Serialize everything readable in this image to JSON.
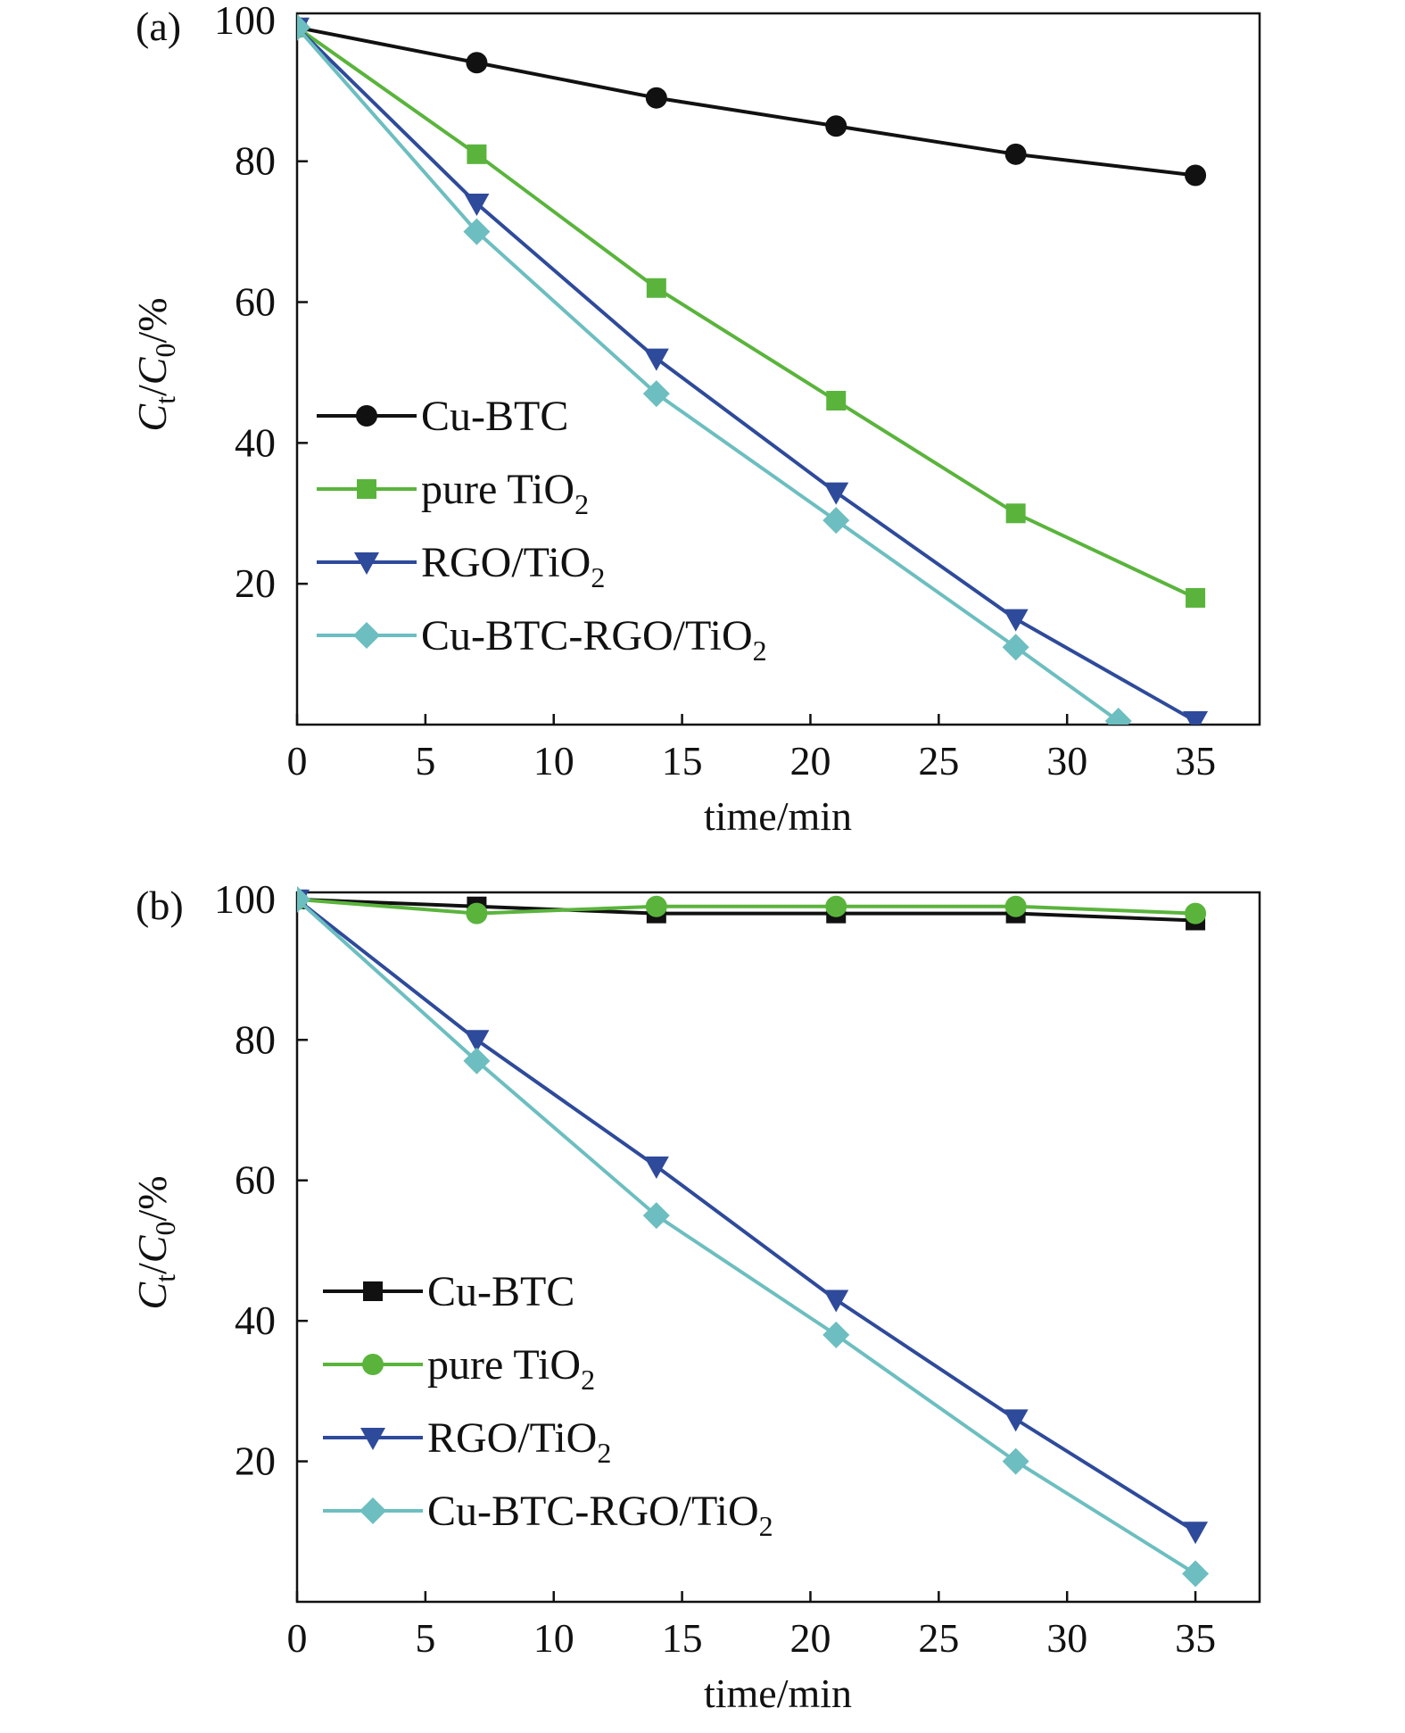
{
  "colors": {
    "Cu-BTC": "#111111",
    "pure TiO2": "#5ab43c",
    "RGO/TiO2": "#2e4a9a",
    "Cu-BTC-RGO/TiO2": "#6dbec0"
  },
  "chart_data": [
    {
      "type": "line",
      "panel_label": "(a)",
      "xlabel": "time/min",
      "ylabel": "Ct/C0/%",
      "xlim": [
        0,
        37.5
      ],
      "ylim": [
        0,
        101
      ],
      "xticks": [
        0,
        5,
        10,
        15,
        20,
        25,
        30,
        35
      ],
      "yticks": [
        20,
        40,
        60,
        80,
        100
      ],
      "grid": false,
      "legend_placement": "center-left",
      "series": [
        {
          "name": "Cu-BTC",
          "marker": "circle",
          "x": [
            0,
            7,
            14,
            21,
            28,
            35
          ],
          "y": [
            99,
            94,
            89,
            85,
            81,
            78
          ]
        },
        {
          "name": "pure TiO2",
          "marker": "square",
          "x": [
            0,
            7,
            14,
            21,
            28,
            35
          ],
          "y": [
            99,
            81,
            62,
            46,
            30,
            18
          ]
        },
        {
          "name": "RGO/TiO2",
          "marker": "triangle-down",
          "x": [
            0,
            7,
            14,
            21,
            28,
            35
          ],
          "y": [
            99,
            74,
            52,
            33,
            15,
            0.5
          ]
        },
        {
          "name": "Cu-BTC-RGO/TiO2",
          "marker": "diamond",
          "x": [
            0,
            7,
            14,
            21,
            28,
            32
          ],
          "y": [
            99,
            70,
            47,
            29,
            11,
            0.5
          ]
        }
      ]
    },
    {
      "type": "line",
      "panel_label": "(b)",
      "xlabel": "time/min",
      "ylabel": "Ct/C0/%",
      "xlim": [
        0,
        37.5
      ],
      "ylim": [
        0,
        101
      ],
      "xticks": [
        0,
        5,
        10,
        15,
        20,
        25,
        30,
        35
      ],
      "yticks": [
        20,
        40,
        60,
        80,
        100
      ],
      "grid": false,
      "legend_placement": "center-left",
      "series": [
        {
          "name": "Cu-BTC",
          "marker": "square",
          "x": [
            0,
            7,
            14,
            21,
            28,
            35
          ],
          "y": [
            100,
            99,
            98,
            98,
            98,
            97
          ]
        },
        {
          "name": "pure TiO2",
          "marker": "circle",
          "x": [
            0,
            7,
            14,
            21,
            28,
            35
          ],
          "y": [
            100,
            98,
            99,
            99,
            99,
            98
          ]
        },
        {
          "name": "RGO/TiO2",
          "marker": "triangle-down",
          "x": [
            0,
            7,
            14,
            21,
            28,
            35
          ],
          "y": [
            100,
            80,
            62,
            43,
            26,
            10
          ]
        },
        {
          "name": "Cu-BTC-RGO/TiO2",
          "marker": "diamond",
          "x": [
            0,
            7,
            14,
            21,
            28,
            35
          ],
          "y": [
            100,
            77,
            55,
            38,
            20,
            4
          ]
        }
      ]
    }
  ],
  "legend_text": [
    {
      "main": "Cu-BTC",
      "sub": ""
    },
    {
      "main": "pure TiO",
      "sub": "2"
    },
    {
      "main": "RGO/TiO",
      "sub": "2"
    },
    {
      "main": "Cu-BTC-RGO/TiO",
      "sub": "2"
    }
  ],
  "ylabel_parts": {
    "c1": "C",
    "s1": "t",
    "slash": "/",
    "c2": "C",
    "s2": "0",
    "rest": "/%"
  }
}
